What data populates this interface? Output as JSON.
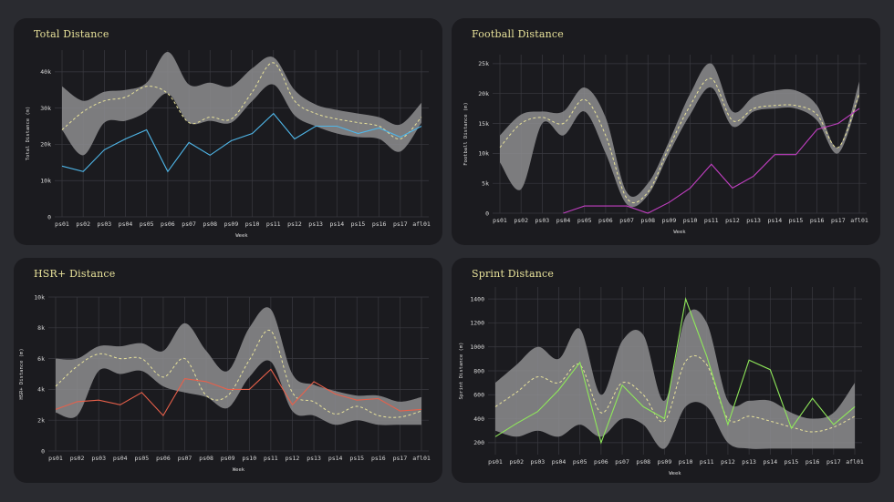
{
  "chart_data": [
    {
      "type": "line",
      "title": "Total Distance",
      "xlabel": "Week",
      "ylabel": "Total Distance (m)",
      "ylim": [
        0,
        46000
      ],
      "yticks": [
        0,
        10000,
        20000,
        30000,
        40000
      ],
      "ytick_labels": [
        "0",
        "10k",
        "20k",
        "30k",
        "40k"
      ],
      "categories": [
        "ps01",
        "ps02",
        "ps03",
        "ps04",
        "ps05",
        "ps06",
        "ps07",
        "ps08",
        "ps09",
        "ps10",
        "ps11",
        "ps12",
        "ps13",
        "ps14",
        "ps15",
        "ps16",
        "ps17",
        "afl01"
      ],
      "band_upper": [
        36000,
        32000,
        34500,
        35000,
        37000,
        45500,
        36500,
        37000,
        36000,
        41000,
        44000,
        35000,
        31000,
        29500,
        28500,
        27500,
        25500,
        31500
      ],
      "band_lower": [
        24000,
        17000,
        26000,
        26500,
        29000,
        34000,
        26000,
        26500,
        26000,
        32000,
        36500,
        28000,
        25000,
        23000,
        22000,
        21500,
        18000,
        26000
      ],
      "mean": [
        24000,
        29000,
        32000,
        33000,
        36000,
        34000,
        26000,
        27500,
        27000,
        34500,
        42500,
        32000,
        28500,
        27000,
        26000,
        25000,
        21500,
        27500
      ],
      "player": [
        14000,
        12500,
        18500,
        21500,
        24000,
        12500,
        20500,
        17000,
        21000,
        23000,
        28500,
        21500,
        25000,
        25000,
        23000,
        24500,
        22000,
        25000
      ],
      "player_color": "#4fb6e8",
      "mean_color": "#e8e29a"
    },
    {
      "type": "line",
      "title": "Football Distance",
      "xlabel": "Week",
      "ylabel": "Football Distance (m)",
      "ylim": [
        0,
        26500
      ],
      "yticks": [
        0,
        5000,
        10000,
        15000,
        20000,
        25000
      ],
      "ytick_labels": [
        "0",
        "5k",
        "10k",
        "15k",
        "20k",
        "25k"
      ],
      "categories": [
        "ps01",
        "ps02",
        "ps03",
        "ps04",
        "ps05",
        "ps06",
        "ps07",
        "ps08",
        "ps09",
        "ps10",
        "ps11",
        "ps12",
        "ps13",
        "ps14",
        "ps15",
        "ps16",
        "ps17",
        "afl01"
      ],
      "band_upper": [
        13000,
        16500,
        17000,
        17000,
        21000,
        16000,
        3500,
        5000,
        12000,
        20000,
        25000,
        17000,
        19500,
        20500,
        20500,
        18000,
        11000,
        22000
      ],
      "band_lower": [
        8500,
        4000,
        15000,
        13000,
        17000,
        10000,
        1500,
        3000,
        10000,
        16500,
        21000,
        14500,
        17000,
        17500,
        17500,
        15500,
        10000,
        19500
      ],
      "mean": [
        11000,
        15000,
        16000,
        15000,
        19000,
        13000,
        2500,
        3500,
        11000,
        18000,
        22500,
        15500,
        17500,
        18000,
        18000,
        16500,
        11000,
        20000
      ],
      "player": [
        null,
        null,
        null,
        0,
        1200,
        1200,
        1200,
        0,
        1800,
        4200,
        8200,
        4200,
        6200,
        9800,
        9800,
        14000,
        15000,
        17500
      ],
      "player_color": "#c13fc1",
      "mean_color": "#e8e29a"
    },
    {
      "type": "line",
      "title": "HSR+ Distance",
      "xlabel": "Week",
      "ylabel": "HSR+ Distance (m)",
      "ylim": [
        0,
        10000
      ],
      "yticks": [
        0,
        2000,
        4000,
        6000,
        8000,
        10000
      ],
      "ytick_labels": [
        "0",
        "2k",
        "4k",
        "6k",
        "8k",
        "10k"
      ],
      "categories": [
        "ps01",
        "ps02",
        "ps03",
        "ps04",
        "ps05",
        "ps06",
        "ps07",
        "ps08",
        "ps09",
        "ps10",
        "ps11",
        "ps12",
        "ps13",
        "ps14",
        "ps15",
        "ps16",
        "ps17",
        "afl01"
      ],
      "band_upper": [
        6000,
        6000,
        6800,
        6800,
        7000,
        6500,
        8300,
        6500,
        5200,
        8000,
        9200,
        5000,
        4300,
        3900,
        3600,
        3600,
        3200,
        3500
      ],
      "band_lower": [
        2500,
        2300,
        5200,
        5000,
        5200,
        4200,
        3800,
        3500,
        2800,
        4800,
        5800,
        2600,
        2300,
        1700,
        2000,
        1700,
        1700,
        1700
      ],
      "mean": [
        4200,
        5500,
        6300,
        6000,
        6000,
        4800,
        6000,
        3600,
        3600,
        5900,
        7800,
        3800,
        3200,
        2400,
        2900,
        2300,
        2200,
        2600
      ],
      "player": [
        2700,
        3200,
        3300,
        3000,
        3800,
        2300,
        4700,
        4500,
        4000,
        4000,
        5300,
        3000,
        4500,
        3700,
        3300,
        3400,
        2600,
        2700
      ],
      "player_color": "#e8604a",
      "mean_color": "#e8e29a"
    },
    {
      "type": "line",
      "title": "Sprint Distance",
      "xlabel": "Week",
      "ylabel": "Sprint Distance (m)",
      "ylim": [
        100,
        1500
      ],
      "yticks": [
        200,
        400,
        600,
        800,
        1000,
        1200,
        1400
      ],
      "ytick_labels": [
        "200",
        "400",
        "600",
        "800",
        "1000",
        "1200",
        "1400"
      ],
      "categories": [
        "ps01",
        "ps02",
        "ps03",
        "ps04",
        "ps05",
        "ps06",
        "ps07",
        "ps08",
        "ps09",
        "ps10",
        "ps11",
        "ps12",
        "ps13",
        "ps14",
        "ps15",
        "ps16",
        "ps17",
        "afl01"
      ],
      "band_upper": [
        700,
        850,
        1000,
        900,
        1150,
        600,
        1050,
        1100,
        550,
        1250,
        1200,
        550,
        550,
        550,
        450,
        400,
        450,
        700
      ],
      "band_lower": [
        300,
        250,
        300,
        250,
        350,
        250,
        400,
        350,
        150,
        500,
        500,
        200,
        150,
        150,
        150,
        150,
        150,
        150
      ],
      "mean": [
        500,
        620,
        750,
        700,
        850,
        450,
        700,
        600,
        380,
        880,
        850,
        400,
        420,
        380,
        330,
        290,
        330,
        420
      ],
      "player": [
        250,
        360,
        460,
        640,
        870,
        200,
        680,
        500,
        400,
        1400,
        920,
        350,
        890,
        810,
        320,
        570,
        350,
        500
      ],
      "player_color": "#8fe85a",
      "mean_color": "#e8e29a"
    }
  ]
}
